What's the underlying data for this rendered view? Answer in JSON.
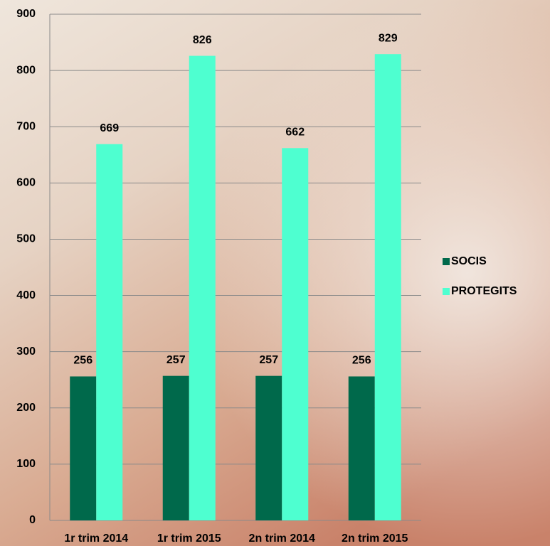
{
  "chart_data": {
    "type": "bar",
    "categories": [
      "1r trim 2014",
      "1r trim 2015",
      "2n trim 2014",
      "2n trim 2015"
    ],
    "series": [
      {
        "name": "SOCIS",
        "color": "#00694b",
        "values": [
          256,
          257,
          257,
          256
        ]
      },
      {
        "name": "PROTEGITS",
        "color": "#4effd0",
        "values": [
          669,
          826,
          662,
          829
        ]
      }
    ],
    "ylim": [
      0,
      900
    ],
    "yticks": [
      0,
      100,
      200,
      300,
      400,
      500,
      600,
      700,
      800,
      900
    ],
    "grid": true,
    "legend": "right"
  }
}
